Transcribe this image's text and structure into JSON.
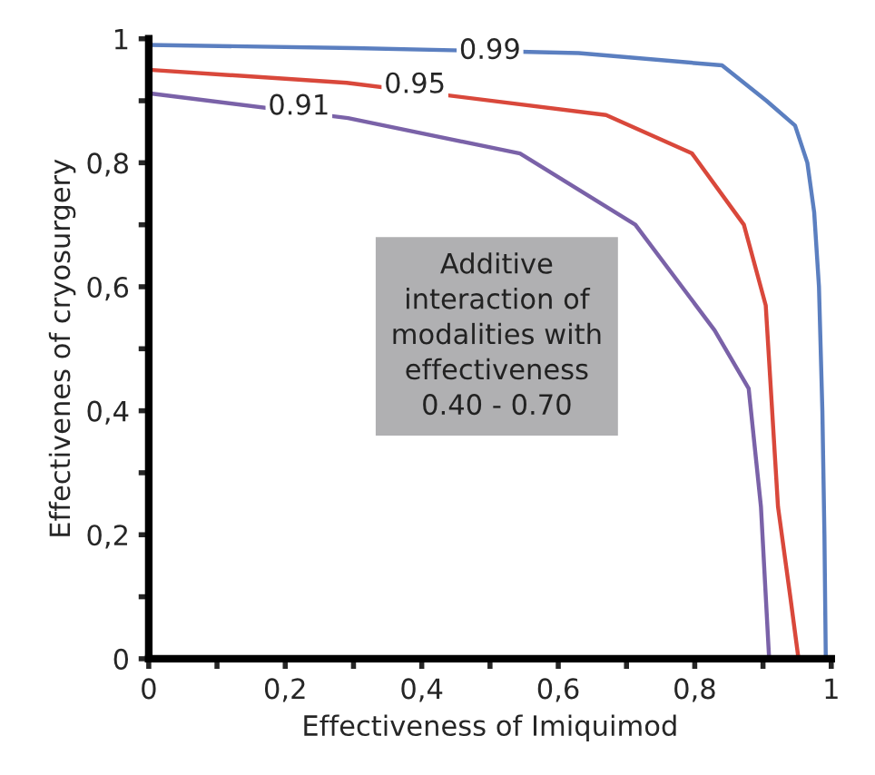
{
  "chart_data": {
    "type": "line",
    "xlabel": "Effectiveness of Imiquimod",
    "ylabel": "Effectivenes of cryosurgery",
    "series": [
      {
        "color": "#5b7fc0",
        "x": [
          0,
          0.3,
          0.63,
          0.84,
          0.905,
          0.947,
          0.965,
          0.975,
          0.982,
          0.987,
          0.99,
          0.992
        ],
        "values": [
          0.99,
          0.985,
          0.977,
          0.957,
          0.9,
          0.86,
          0.8,
          0.72,
          0.6,
          0.4,
          0.2,
          0
        ]
      },
      {
        "color": "#d9483b",
        "x": [
          0,
          0.29,
          0.67,
          0.796,
          0.872,
          0.904,
          0.922,
          0.94,
          0.952
        ],
        "values": [
          0.95,
          0.929,
          0.877,
          0.815,
          0.7,
          0.57,
          0.245,
          0.1,
          0
        ]
      },
      {
        "color": "#7a62a8",
        "x": [
          0,
          0.292,
          0.544,
          0.713,
          0.829,
          0.879,
          0.897,
          0.909
        ],
        "values": [
          0.912,
          0.872,
          0.815,
          0.7,
          0.53,
          0.436,
          0.245,
          0
        ]
      }
    ],
    "annotations": [
      {
        "text": "0.99",
        "x": 0.5,
        "y": 0.98
      },
      {
        "text": "0.95",
        "x": 0.39,
        "y": 0.925
      },
      {
        "text": "0.91",
        "x": 0.22,
        "y": 0.89
      },
      "Additive\ninteraction of\nmodalities with\neffectiveness\n0.40 - 0.70"
    ],
    "xlim": [
      0,
      1
    ],
    "ylim": [
      0,
      1
    ],
    "xticks": [
      0,
      {
        "value": 0.1,
        "label": null
      },
      {
        "value": 0.2,
        "label": "0,2"
      },
      {
        "value": 0.3,
        "label": null
      },
      {
        "value": 0.4,
        "label": "0,4"
      },
      {
        "value": 0.5,
        "label": null
      },
      {
        "value": 0.6,
        "label": "0,6"
      },
      {
        "value": 0.7,
        "label": null
      },
      {
        "value": 0.8,
        "label": "0,8"
      },
      {
        "value": 0.9,
        "label": null
      },
      1
    ],
    "yticks": [
      0,
      {
        "value": 0.1,
        "label": null
      },
      {
        "value": 0.2,
        "label": "0,2"
      },
      {
        "value": 0.3,
        "label": null
      },
      {
        "value": 0.4,
        "label": "0,4"
      },
      {
        "value": 0.5,
        "label": null
      },
      {
        "value": 0.6,
        "label": "0,6"
      },
      {
        "value": 0.7,
        "label": null
      },
      {
        "value": 0.8,
        "label": "0,8"
      },
      {
        "value": 0.9,
        "label": null
      },
      1
    ],
    "grid": false,
    "legend": false,
    "marker": "none",
    "line_style": "solid"
  }
}
